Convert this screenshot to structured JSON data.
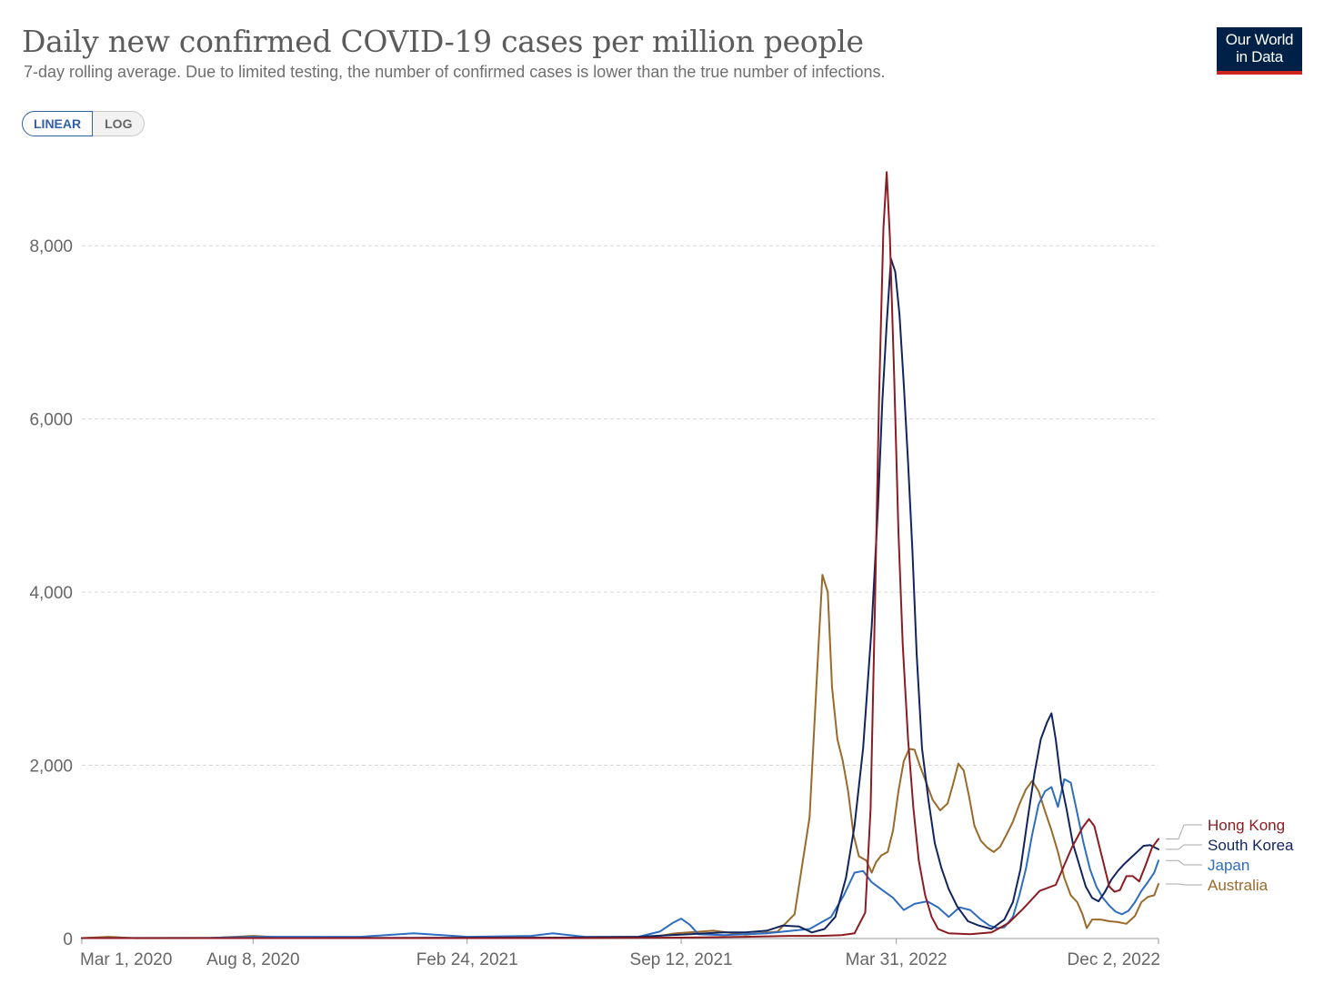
{
  "title": "Daily new confirmed COVID-19 cases per million people",
  "subtitle": "7-day rolling average. Due to limited testing, the number of confirmed cases is lower than the true number of infections.",
  "logo": {
    "line1": "Our World",
    "line2": "in Data"
  },
  "scale_toggle": {
    "linear_label": "LINEAR",
    "log_label": "LOG",
    "selected": "LINEAR"
  },
  "chart_data": {
    "type": "line",
    "title": "Daily new confirmed COVID-19 cases per million people",
    "xlabel": "",
    "ylabel": "",
    "ylim": [
      0,
      9000
    ],
    "yticks": [
      {
        "value": 0,
        "label": "0"
      },
      {
        "value": 2000,
        "label": "2,000"
      },
      {
        "value": 4000,
        "label": "4,000"
      },
      {
        "value": 6000,
        "label": "6,000"
      },
      {
        "value": 8000,
        "label": "8,000"
      }
    ],
    "xlim_days": [
      0,
      1006
    ],
    "xticks": [
      {
        "day": 0,
        "label": "Mar 1, 2020"
      },
      {
        "day": 160,
        "label": "Aug 8, 2020"
      },
      {
        "day": 360,
        "label": "Feb 24, 2021"
      },
      {
        "day": 560,
        "label": "Sep 12, 2021"
      },
      {
        "day": 761,
        "label": "Mar 31, 2022"
      },
      {
        "day": 1006,
        "label": "Dec 2, 2022"
      }
    ],
    "x_unit": "days since Mar 1, 2020",
    "series": [
      {
        "name": "Australia",
        "color": "#9a6a2a",
        "points": [
          [
            0,
            5
          ],
          [
            25,
            20
          ],
          [
            50,
            4
          ],
          [
            120,
            5
          ],
          [
            160,
            30
          ],
          [
            200,
            5
          ],
          [
            300,
            5
          ],
          [
            480,
            5
          ],
          [
            530,
            12
          ],
          [
            555,
            60
          ],
          [
            590,
            90
          ],
          [
            620,
            45
          ],
          [
            650,
            80
          ],
          [
            666,
            280
          ],
          [
            680,
            1400
          ],
          [
            688,
            3300
          ],
          [
            692,
            4200
          ],
          [
            697,
            4000
          ],
          [
            701,
            2900
          ],
          [
            706,
            2300
          ],
          [
            711,
            2050
          ],
          [
            716,
            1700
          ],
          [
            721,
            1200
          ],
          [
            726,
            950
          ],
          [
            733,
            900
          ],
          [
            738,
            760
          ],
          [
            742,
            880
          ],
          [
            747,
            960
          ],
          [
            753,
            1000
          ],
          [
            758,
            1250
          ],
          [
            763,
            1700
          ],
          [
            768,
            2050
          ],
          [
            773,
            2190
          ],
          [
            778,
            2180
          ],
          [
            783,
            2000
          ],
          [
            789,
            1800
          ],
          [
            795,
            1600
          ],
          [
            802,
            1480
          ],
          [
            809,
            1560
          ],
          [
            814,
            1780
          ],
          [
            819,
            2020
          ],
          [
            824,
            1940
          ],
          [
            829,
            1640
          ],
          [
            834,
            1300
          ],
          [
            840,
            1130
          ],
          [
            846,
            1050
          ],
          [
            852,
            1000
          ],
          [
            858,
            1060
          ],
          [
            864,
            1200
          ],
          [
            870,
            1350
          ],
          [
            876,
            1550
          ],
          [
            882,
            1720
          ],
          [
            888,
            1820
          ],
          [
            894,
            1700
          ],
          [
            900,
            1470
          ],
          [
            906,
            1250
          ],
          [
            912,
            1000
          ],
          [
            918,
            700
          ],
          [
            924,
            500
          ],
          [
            930,
            420
          ],
          [
            935,
            280
          ],
          [
            939,
            120
          ],
          [
            944,
            220
          ],
          [
            952,
            220
          ],
          [
            960,
            200
          ],
          [
            968,
            190
          ],
          [
            976,
            170
          ],
          [
            984,
            260
          ],
          [
            990,
            420
          ],
          [
            996,
            480
          ],
          [
            1002,
            500
          ],
          [
            1006,
            630
          ]
        ]
      },
      {
        "name": "Japan",
        "color": "#2e6dbf",
        "points": [
          [
            0,
            5
          ],
          [
            120,
            8
          ],
          [
            160,
            20
          ],
          [
            260,
            20
          ],
          [
            310,
            60
          ],
          [
            360,
            20
          ],
          [
            420,
            30
          ],
          [
            440,
            60
          ],
          [
            470,
            20
          ],
          [
            520,
            20
          ],
          [
            540,
            80
          ],
          [
            552,
            180
          ],
          [
            560,
            230
          ],
          [
            568,
            160
          ],
          [
            576,
            50
          ],
          [
            600,
            40
          ],
          [
            640,
            60
          ],
          [
            680,
            110
          ],
          [
            700,
            250
          ],
          [
            712,
            500
          ],
          [
            722,
            760
          ],
          [
            730,
            780
          ],
          [
            738,
            650
          ],
          [
            748,
            560
          ],
          [
            758,
            470
          ],
          [
            768,
            330
          ],
          [
            778,
            400
          ],
          [
            790,
            430
          ],
          [
            800,
            360
          ],
          [
            810,
            250
          ],
          [
            820,
            360
          ],
          [
            830,
            330
          ],
          [
            840,
            220
          ],
          [
            848,
            150
          ],
          [
            855,
            120
          ],
          [
            862,
            130
          ],
          [
            870,
            250
          ],
          [
            876,
            500
          ],
          [
            882,
            800
          ],
          [
            888,
            1200
          ],
          [
            894,
            1550
          ],
          [
            900,
            1700
          ],
          [
            906,
            1750
          ],
          [
            912,
            1520
          ],
          [
            918,
            1840
          ],
          [
            924,
            1800
          ],
          [
            930,
            1450
          ],
          [
            936,
            1100
          ],
          [
            942,
            800
          ],
          [
            948,
            600
          ],
          [
            954,
            470
          ],
          [
            960,
            380
          ],
          [
            966,
            310
          ],
          [
            972,
            280
          ],
          [
            978,
            320
          ],
          [
            984,
            420
          ],
          [
            990,
            550
          ],
          [
            996,
            650
          ],
          [
            1002,
            760
          ],
          [
            1006,
            900
          ]
        ]
      },
      {
        "name": "South Korea",
        "color": "#11245e",
        "points": [
          [
            0,
            5
          ],
          [
            200,
            5
          ],
          [
            300,
            8
          ],
          [
            450,
            10
          ],
          [
            520,
            20
          ],
          [
            550,
            40
          ],
          [
            568,
            50
          ],
          [
            600,
            70
          ],
          [
            620,
            70
          ],
          [
            640,
            90
          ],
          [
            655,
            150
          ],
          [
            670,
            140
          ],
          [
            682,
            70
          ],
          [
            694,
            110
          ],
          [
            704,
            250
          ],
          [
            714,
            700
          ],
          [
            722,
            1300
          ],
          [
            730,
            2200
          ],
          [
            738,
            3600
          ],
          [
            744,
            5000
          ],
          [
            748,
            6200
          ],
          [
            752,
            7100
          ],
          [
            756,
            7850
          ],
          [
            760,
            7700
          ],
          [
            764,
            7200
          ],
          [
            768,
            6400
          ],
          [
            772,
            5500
          ],
          [
            776,
            4500
          ],
          [
            780,
            3300
          ],
          [
            785,
            2200
          ],
          [
            791,
            1600
          ],
          [
            797,
            1100
          ],
          [
            803,
            820
          ],
          [
            810,
            570
          ],
          [
            818,
            370
          ],
          [
            828,
            200
          ],
          [
            838,
            150
          ],
          [
            850,
            110
          ],
          [
            862,
            220
          ],
          [
            870,
            420
          ],
          [
            877,
            800
          ],
          [
            884,
            1400
          ],
          [
            890,
            1900
          ],
          [
            896,
            2300
          ],
          [
            902,
            2500
          ],
          [
            906,
            2600
          ],
          [
            910,
            2300
          ],
          [
            915,
            1800
          ],
          [
            920,
            1500
          ],
          [
            926,
            1100
          ],
          [
            932,
            850
          ],
          [
            938,
            600
          ],
          [
            944,
            470
          ],
          [
            950,
            430
          ],
          [
            956,
            540
          ],
          [
            962,
            680
          ],
          [
            968,
            780
          ],
          [
            974,
            860
          ],
          [
            980,
            930
          ],
          [
            986,
            1000
          ],
          [
            992,
            1070
          ],
          [
            998,
            1080
          ],
          [
            1006,
            1030
          ]
        ]
      },
      {
        "name": "Hong Kong",
        "color": "#8c1c22",
        "points": [
          [
            0,
            5
          ],
          [
            300,
            5
          ],
          [
            450,
            5
          ],
          [
            560,
            10
          ],
          [
            620,
            20
          ],
          [
            660,
            30
          ],
          [
            690,
            30
          ],
          [
            710,
            40
          ],
          [
            722,
            60
          ],
          [
            732,
            300
          ],
          [
            737,
            1500
          ],
          [
            741,
            3800
          ],
          [
            745,
            6300
          ],
          [
            749,
            8200
          ],
          [
            752,
            8850
          ],
          [
            755,
            8100
          ],
          [
            759,
            6500
          ],
          [
            763,
            4700
          ],
          [
            767,
            3400
          ],
          [
            772,
            2300
          ],
          [
            777,
            1500
          ],
          [
            782,
            900
          ],
          [
            788,
            500
          ],
          [
            794,
            250
          ],
          [
            800,
            110
          ],
          [
            810,
            60
          ],
          [
            830,
            50
          ],
          [
            850,
            70
          ],
          [
            866,
            180
          ],
          [
            880,
            350
          ],
          [
            895,
            550
          ],
          [
            910,
            620
          ],
          [
            925,
            1050
          ],
          [
            935,
            1280
          ],
          [
            941,
            1380
          ],
          [
            946,
            1300
          ],
          [
            951,
            1050
          ],
          [
            956,
            800
          ],
          [
            960,
            600
          ],
          [
            965,
            540
          ],
          [
            970,
            560
          ],
          [
            976,
            720
          ],
          [
            982,
            720
          ],
          [
            988,
            660
          ],
          [
            994,
            850
          ],
          [
            1000,
            1050
          ],
          [
            1006,
            1150
          ]
        ]
      }
    ],
    "legend": {
      "placement": "right",
      "entries": [
        {
          "label": "Hong Kong",
          "color": "#8c1c22"
        },
        {
          "label": "South Korea",
          "color": "#11245e"
        },
        {
          "label": "Japan",
          "color": "#2e6dbf"
        },
        {
          "label": "Australia",
          "color": "#9a6a2a"
        }
      ]
    }
  }
}
